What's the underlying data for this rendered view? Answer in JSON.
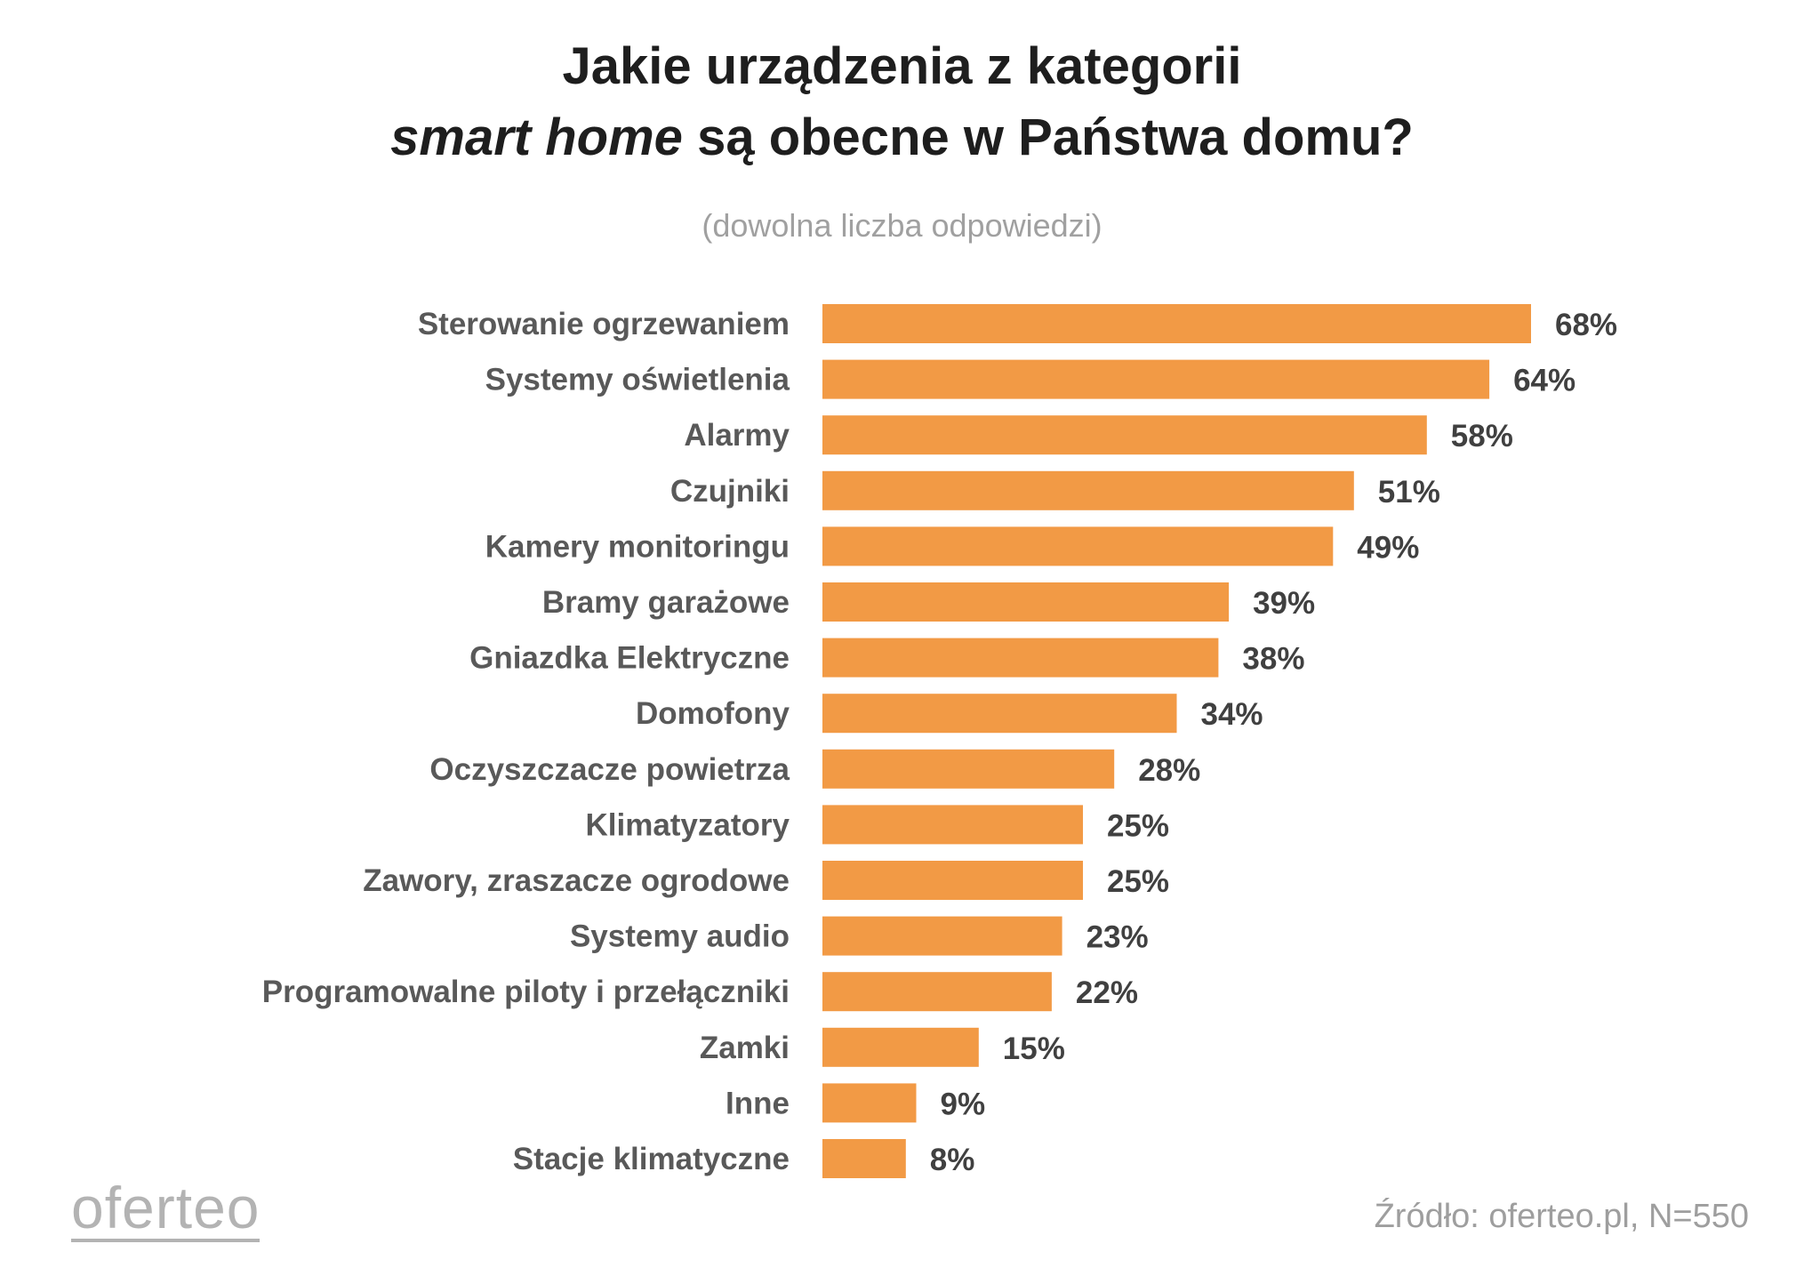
{
  "title": {
    "line1": "Jakie urządzenia z kategorii",
    "line2_italic": "smart home",
    "line2_rest": " są obecne w Państwa domu?"
  },
  "subtitle": "(dowolna liczba odpowiedzi)",
  "logo": "oferteo",
  "source": "Źródło: oferteo.pl, N=550",
  "colors": {
    "bar": "#F29A45",
    "title": "#1E1E1E",
    "category_text": "#595959",
    "value_text": "#404040",
    "muted": "#A0A0A0"
  },
  "chart_data": {
    "type": "bar",
    "orientation": "horizontal",
    "title": "Jakie urządzenia z kategorii smart home są obecne w Państwa domu?",
    "subtitle": "(dowolna liczba odpowiedzi)",
    "xlabel": "",
    "ylabel": "",
    "xlim": [
      0,
      68
    ],
    "grid": false,
    "legend": "none",
    "categories": [
      "Sterowanie ogrzewaniem",
      "Systemy oświetlenia",
      "Alarmy",
      "Czujniki",
      "Kamery monitoringu",
      "Bramy garażowe",
      "Gniazdka Elektryczne",
      "Domofony",
      "Oczyszczacze powietrza",
      "Klimatyzatory",
      "Zawory, zraszacze ogrodowe",
      "Systemy audio",
      "Programowalne piloty i przełączniki",
      "Zamki",
      "Inne",
      "Stacje klimatyczne"
    ],
    "values": [
      68,
      64,
      58,
      51,
      49,
      39,
      38,
      34,
      28,
      25,
      25,
      23,
      22,
      15,
      9,
      8
    ],
    "value_labels": [
      "68%",
      "64%",
      "58%",
      "51%",
      "49%",
      "39%",
      "38%",
      "34%",
      "28%",
      "25%",
      "25%",
      "23%",
      "22%",
      "15%",
      "9%",
      "8%"
    ]
  }
}
